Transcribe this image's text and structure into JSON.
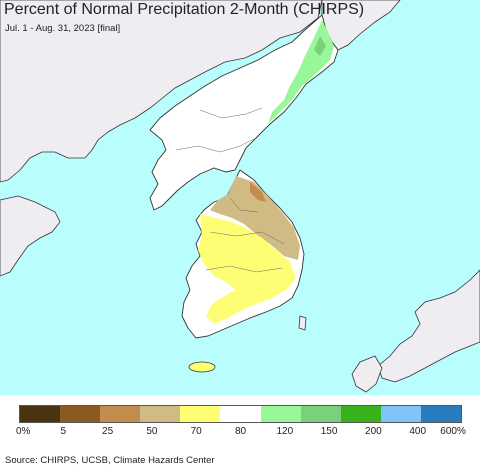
{
  "header": {
    "title": "Percent of Normal Precipitation 2-Month (CHIRPS)",
    "subtitle": "Jul. 1 - Aug. 31, 2023 [final]"
  },
  "legend": {
    "colors": [
      "#4a3310",
      "#8b5a22",
      "#c28d4c",
      "#d1bb84",
      "#fefe74",
      "#ffffff",
      "#98f899",
      "#7bd07a",
      "#38b21a",
      "#7fc4f8",
      "#2a7cc0"
    ],
    "tick_labels": [
      "0%",
      "5",
      "25",
      "50",
      "70",
      "80",
      "120",
      "150",
      "200",
      "400",
      "600%"
    ]
  },
  "footer": {
    "credit": "Source: CHIRPS, UCSB, Climate Hazards Center"
  },
  "map": {
    "sea_color": "#b9fdfd",
    "foreign_land_color": "#efedf1",
    "no_data_color": "#ffffff"
  }
}
